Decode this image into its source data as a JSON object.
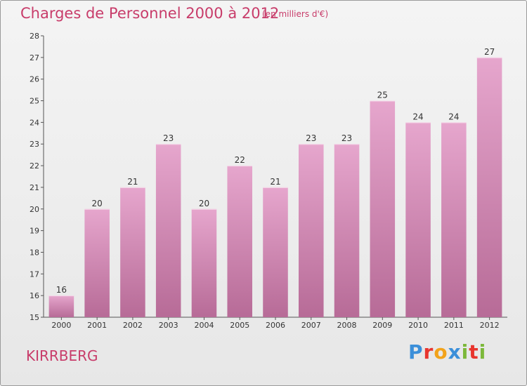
{
  "header": {
    "title": "Charges de Personnel 2000 à 2012",
    "subtitle": "(en milliers d'€)"
  },
  "footer": {
    "place": "KIRRBERG",
    "logo": "Proxiti",
    "logo_colors": [
      "#3b8fd9",
      "#e8352e",
      "#f2a31b",
      "#3b8fd9",
      "#7cb83a",
      "#e8352e",
      "#7cb83a"
    ]
  },
  "colors": {
    "bar_top": "#e6a6cd",
    "bar_bottom": "#b76b97",
    "title": "#c83c6a"
  },
  "chart_data": {
    "type": "bar",
    "categories": [
      "2000",
      "2001",
      "2002",
      "2003",
      "2004",
      "2005",
      "2006",
      "2007",
      "2008",
      "2009",
      "2010",
      "2011",
      "2012"
    ],
    "values": [
      16,
      20,
      21,
      23,
      20,
      22,
      21,
      23,
      23,
      25,
      24,
      24,
      27
    ],
    "ylim": [
      15,
      28
    ],
    "yticks": [
      15,
      16,
      17,
      18,
      19,
      20,
      21,
      22,
      23,
      24,
      25,
      26,
      27,
      28
    ],
    "grid": false
  }
}
